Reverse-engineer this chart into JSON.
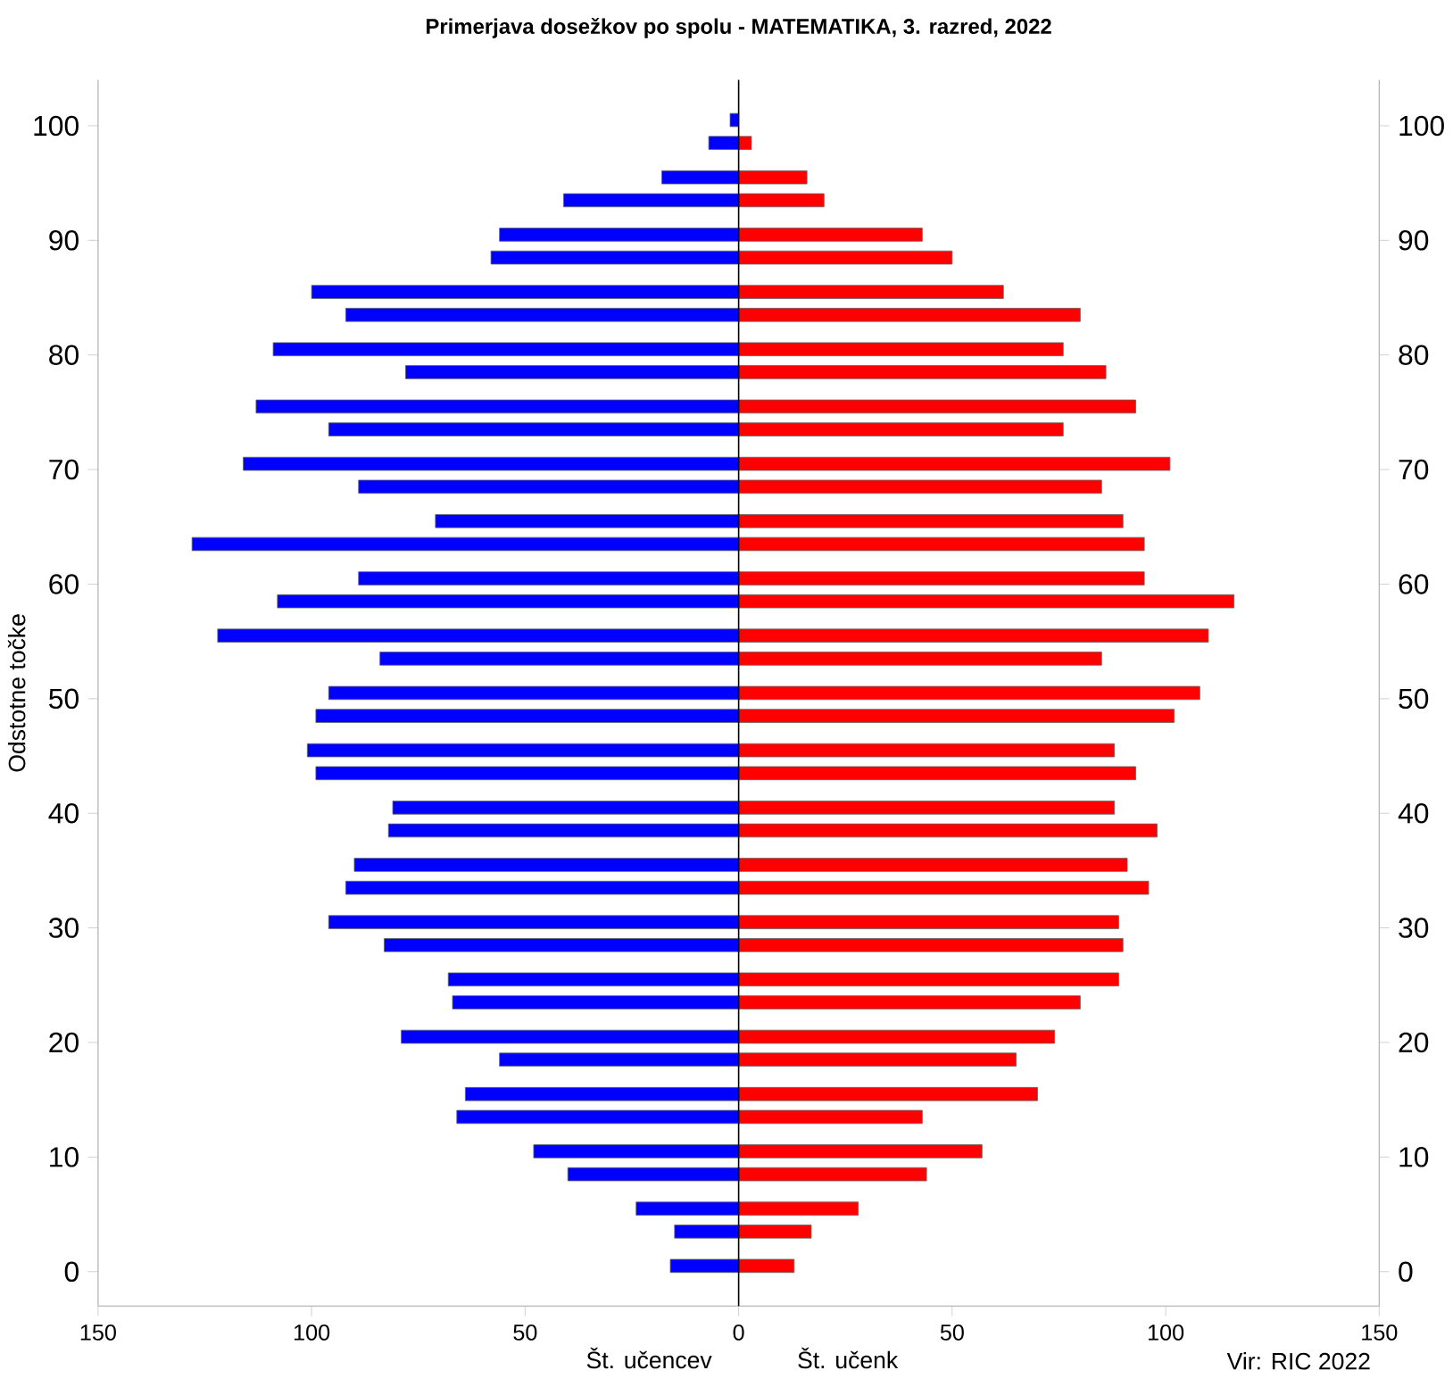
{
  "chart_data": [
    {
      "type": "bar",
      "orientation": "horizontal",
      "title": "Primerjava dosežkov po spolu - MATEMATIKA, 3. razred, 2022",
      "ylabel": "Odstotne točke",
      "xlabel": "Št. učencev",
      "x": [
        100.5,
        98.5,
        95.5,
        93.5,
        90.5,
        88.5,
        85.5,
        83.5,
        80.5,
        78.5,
        75.5,
        73.5,
        70.5,
        68.5,
        65.5,
        63.5,
        60.5,
        58.5,
        55.5,
        53.5,
        50.5,
        48.5,
        45.5,
        43.5,
        40.5,
        38.5,
        35.5,
        33.5,
        30.5,
        28.5,
        25.5,
        23.5,
        20.5,
        18.5,
        15.5,
        13.5,
        10.5,
        8.5,
        5.5,
        3.5,
        0.5
      ],
      "series": [
        {
          "color": "#0000ff",
          "values": [
            2,
            7,
            18,
            41,
            56,
            58,
            100,
            92,
            109,
            78,
            113,
            96,
            116,
            89,
            71,
            128,
            89,
            108,
            122,
            84,
            96,
            99,
            101,
            99,
            81,
            82,
            90,
            92,
            96,
            83,
            68,
            67,
            79,
            56,
            64,
            66,
            48,
            40,
            24,
            15,
            16
          ]
        }
      ],
      "xlim": [
        150,
        0
      ],
      "xticks": [
        150,
        100,
        50
      ],
      "ylim": [
        -3,
        104
      ],
      "yticks": [
        0,
        10,
        20,
        30,
        40,
        50,
        60,
        70,
        80,
        90,
        100
      ],
      "grid": false
    },
    {
      "type": "bar",
      "orientation": "horizontal",
      "xlabel": "Št. učenk",
      "x": [
        98.5,
        95.5,
        93.5,
        90.5,
        88.5,
        85.5,
        83.5,
        80.5,
        78.5,
        75.5,
        73.5,
        70.5,
        68.5,
        65.5,
        63.5,
        60.5,
        58.5,
        55.5,
        53.5,
        50.5,
        48.5,
        45.5,
        43.5,
        40.5,
        38.5,
        35.5,
        33.5,
        30.5,
        28.5,
        25.5,
        23.5,
        20.5,
        18.5,
        15.5,
        13.5,
        10.5,
        8.5,
        5.5,
        3.5,
        0.5
      ],
      "series": [
        {
          "color": "#ff0000",
          "values": [
            3,
            16,
            20,
            43,
            50,
            62,
            80,
            76,
            86,
            93,
            76,
            101,
            85,
            90,
            95,
            95,
            116,
            110,
            85,
            108,
            102,
            88,
            93,
            88,
            98,
            91,
            96,
            89,
            90,
            89,
            80,
            74,
            65,
            70,
            43,
            57,
            44,
            28,
            17,
            13
          ]
        }
      ],
      "xlim": [
        0,
        150
      ],
      "xticks": [
        0,
        50,
        100,
        150
      ],
      "ylim": [
        -3,
        104
      ],
      "yticks": [
        0,
        10,
        20,
        30,
        40,
        50,
        60,
        70,
        80,
        90,
        100
      ],
      "ref_lines": [
        {
          "axis": "x",
          "value": 0,
          "color": "#000000"
        }
      ],
      "annotations": [
        "Vir: RIC 2022"
      ],
      "grid": false
    }
  ]
}
